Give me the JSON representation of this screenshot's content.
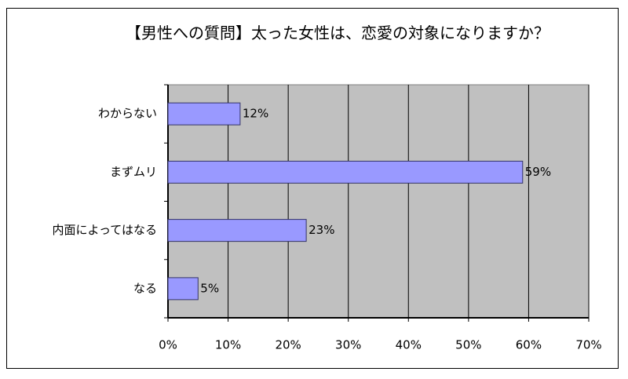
{
  "chart_data": {
    "type": "bar",
    "orientation": "horizontal",
    "title": "【男性への質問】太った女性は、恋愛の対象になりますか？",
    "categories": [
      "わからない",
      "まずムリ",
      "内面によってはなる",
      "なる"
    ],
    "values": [
      12,
      59,
      23,
      5
    ],
    "value_labels": [
      "12%",
      "59%",
      "23%",
      "5%"
    ],
    "color": "#9999ff",
    "xlim": [
      0,
      70
    ],
    "xticks": [
      {
        "value": 0,
        "label": "0%"
      },
      {
        "value": 10,
        "label": "10%"
      },
      {
        "value": 20,
        "label": "20%"
      },
      {
        "value": 30,
        "label": "30%"
      },
      {
        "value": 40,
        "label": "40%"
      },
      {
        "value": 50,
        "label": "50%"
      },
      {
        "value": 60,
        "label": "60%"
      },
      {
        "value": 70,
        "label": "70%"
      }
    ],
    "grid": true
  }
}
